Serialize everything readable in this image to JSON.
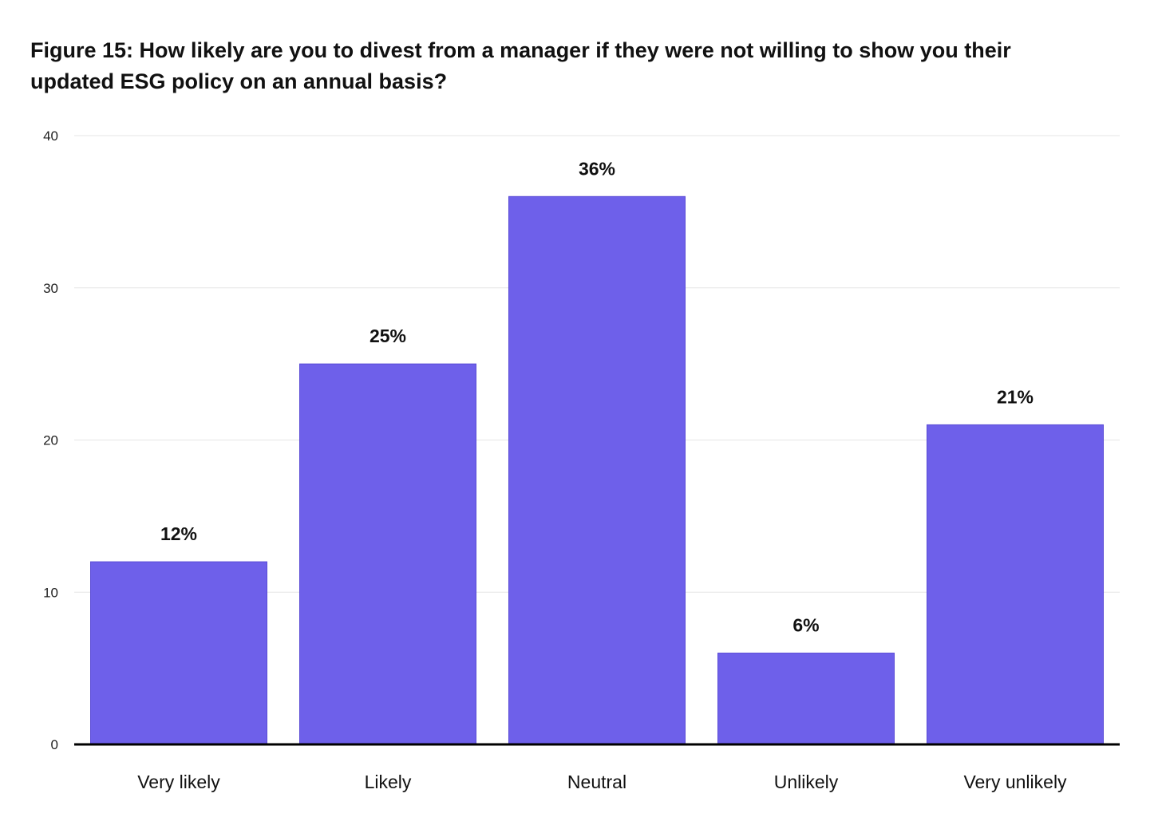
{
  "title": "Figure 15: How likely are you to divest from a manager if they were not willing to show you their updated ESG policy on an annual basis?",
  "chart_data": {
    "type": "bar",
    "title": "Figure 15: How likely are you to divest from a manager if they were not willing to show you their updated ESG policy on an annual basis?",
    "xlabel": "",
    "ylabel": "",
    "categories": [
      "Very likely",
      "Likely",
      "Neutral",
      "Unlikely",
      "Very unlikely"
    ],
    "values": [
      12,
      25,
      36,
      6,
      21
    ],
    "data_labels": [
      "12%",
      "25%",
      "36%",
      "6%",
      "21%"
    ],
    "ylim": [
      0,
      40
    ],
    "yticks": [
      0,
      10,
      20,
      30,
      40
    ],
    "ytick_labels": [
      "0",
      "10",
      "20",
      "30",
      "40"
    ],
    "grid": true,
    "legend": "none",
    "colors": {
      "bar": "#6e60ea",
      "bar_edge": "#5a4bd6",
      "grid": "#e6e6e6",
      "axis": "#000000"
    }
  }
}
